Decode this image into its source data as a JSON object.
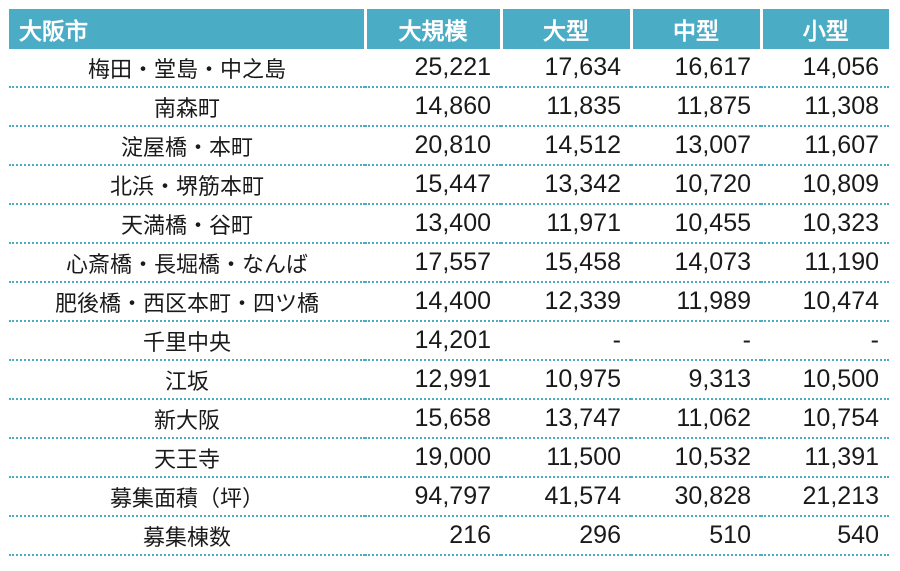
{
  "table": {
    "headers": [
      "大阪市",
      "大規模",
      "大型",
      "中型",
      "小型"
    ],
    "rows": [
      [
        "梅田・堂島・中之島",
        "25,221",
        "17,634",
        "16,617",
        "14,056"
      ],
      [
        "南森町",
        "14,860",
        "11,835",
        "11,875",
        "11,308"
      ],
      [
        "淀屋橋・本町",
        "20,810",
        "14,512",
        "13,007",
        "11,607"
      ],
      [
        "北浜・堺筋本町",
        "15,447",
        "13,342",
        "10,720",
        "10,809"
      ],
      [
        "天満橋・谷町",
        "13,400",
        "11,971",
        "10,455",
        "10,323"
      ],
      [
        "心斎橋・長堀橋・なんば",
        "17,557",
        "15,458",
        "14,073",
        "11,190"
      ],
      [
        "肥後橋・西区本町・四ツ橋",
        "14,400",
        "12,339",
        "11,989",
        "10,474"
      ],
      [
        "千里中央",
        "14,201",
        "-",
        "-",
        "-"
      ],
      [
        "江坂",
        "12,991",
        "10,975",
        "9,313",
        "10,500"
      ],
      [
        "新大阪",
        "15,658",
        "13,747",
        "11,062",
        "10,754"
      ],
      [
        "天王寺",
        "19,000",
        "11,500",
        "10,532",
        "11,391"
      ],
      [
        "募集面積（坪）",
        "94,797",
        "41,574",
        "30,828",
        "21,213"
      ],
      [
        "募集棟数",
        "216",
        "296",
        "510",
        "540"
      ]
    ]
  },
  "colors": {
    "header_bg": "#4bacc6",
    "header_text": "#ffffff",
    "row_border": "#4bacc6"
  }
}
